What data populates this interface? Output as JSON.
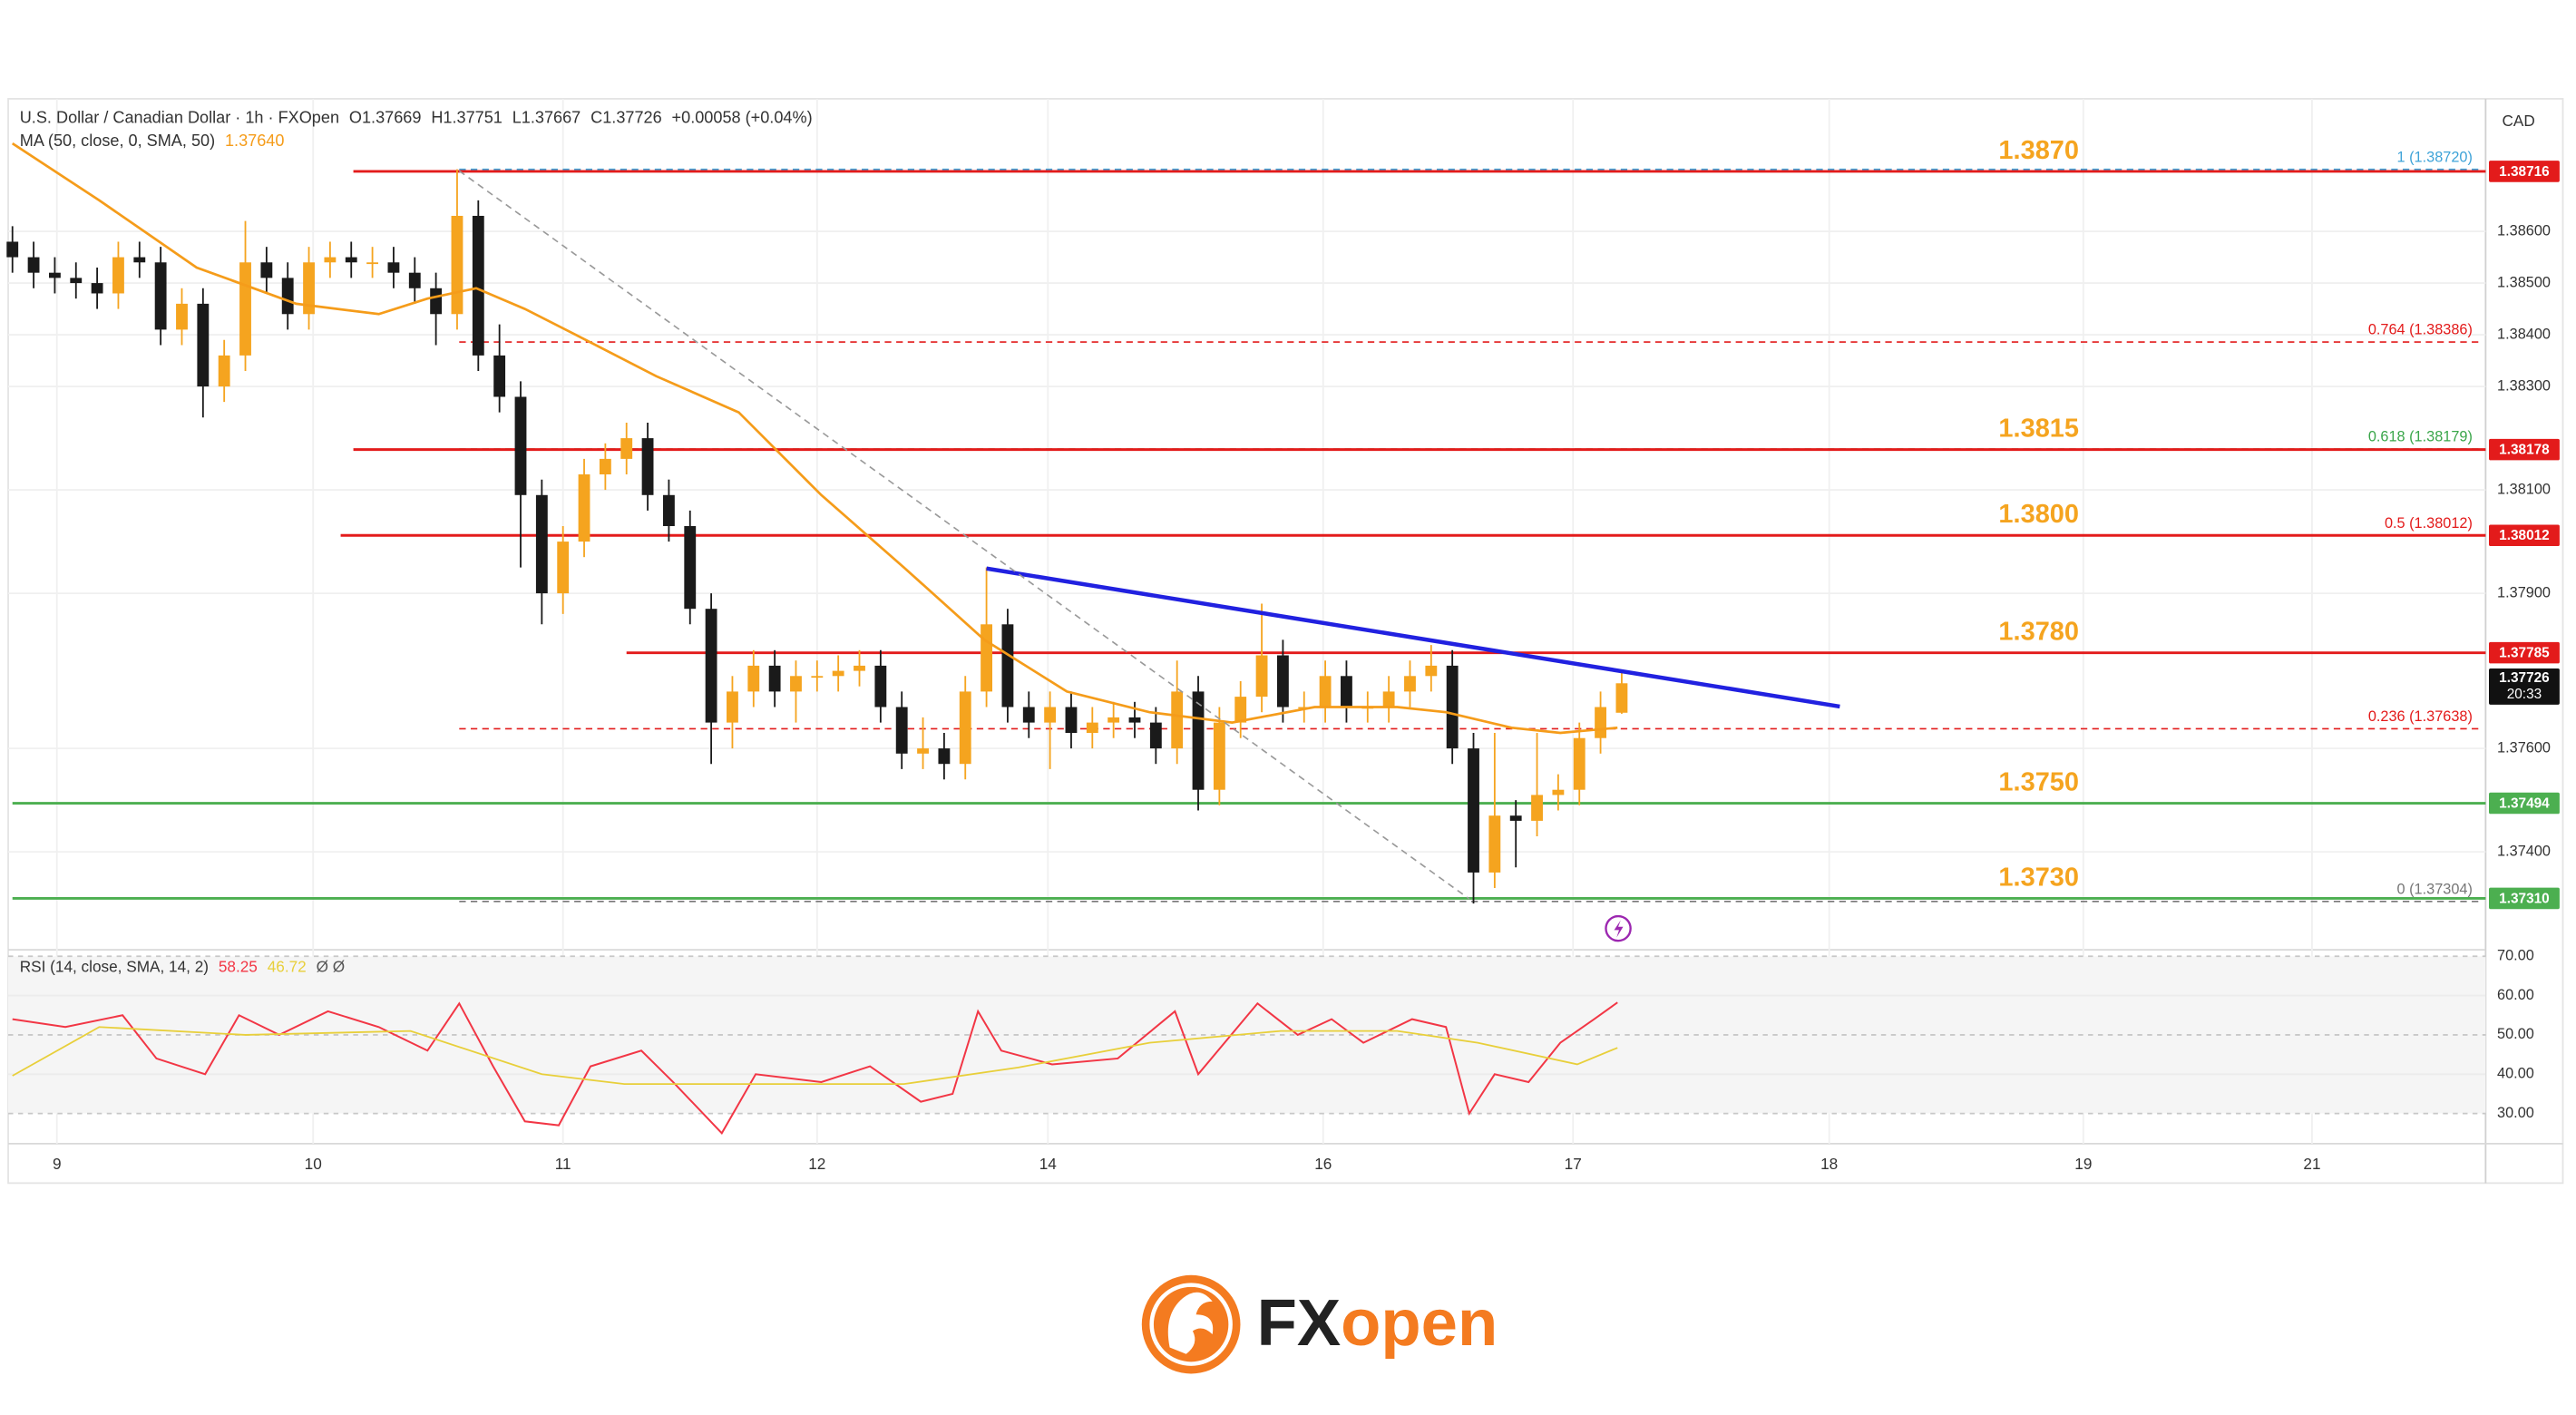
{
  "chart_data": [
    {
      "type": "candlestick",
      "title": "U.S. Dollar / Canadian Dollar · 1h · FXOpen",
      "ohlc_labels": [
        "O1.37669",
        "H1.37751",
        "L1.37667",
        "C1.37726"
      ],
      "change_label": "+0.00058 (+0.04%)",
      "currency": "CAD",
      "countdown": "20:33",
      "up_color": "#f5a41f",
      "down_color": "#1a1a1a",
      "open": [
        1.3858,
        1.3855,
        1.3852,
        1.3851,
        1.385,
        1.3848,
        1.3855,
        1.3854,
        1.3841,
        1.3846,
        1.383,
        1.3836,
        1.3854,
        1.3851,
        1.3844,
        1.3854,
        1.3855,
        1.3854,
        1.3854,
        1.3852,
        1.3849,
        1.3844,
        1.3863,
        1.3836,
        1.3828,
        1.3809,
        1.379,
        1.38,
        1.3813,
        1.3816,
        1.382,
        1.3809,
        1.3803,
        1.3787,
        1.3765,
        1.3771,
        1.3776,
        1.3771,
        1.3774,
        1.3774,
        1.3775,
        1.3776,
        1.3768,
        1.3759,
        1.376,
        1.3757,
        1.3771,
        1.3784,
        1.3768,
        1.3765,
        1.3768,
        1.3763,
        1.3765,
        1.3766,
        1.3765,
        1.376,
        1.3771,
        1.3752,
        1.3765,
        1.377,
        1.3778,
        1.3768,
        1.3768,
        1.3774,
        1.3768,
        1.3768,
        1.3771,
        1.3774,
        1.3776,
        1.376,
        1.3736,
        1.3747,
        1.3746,
        1.3751,
        1.3752,
        1.3762,
        1.37669
      ],
      "high": [
        1.3861,
        1.3858,
        1.3855,
        1.3854,
        1.3853,
        1.3858,
        1.3858,
        1.3857,
        1.3849,
        1.3849,
        1.3839,
        1.3862,
        1.3857,
        1.3854,
        1.3857,
        1.3858,
        1.3858,
        1.3857,
        1.3857,
        1.3855,
        1.3852,
        1.3872,
        1.3866,
        1.3842,
        1.3831,
        1.3812,
        1.3803,
        1.3816,
        1.3819,
        1.3823,
        1.3823,
        1.3812,
        1.3806,
        1.379,
        1.3774,
        1.3779,
        1.3779,
        1.3777,
        1.3777,
        1.3778,
        1.3779,
        1.3779,
        1.3771,
        1.3766,
        1.3763,
        1.3774,
        1.3795,
        1.3787,
        1.3771,
        1.3771,
        1.3771,
        1.3768,
        1.3769,
        1.3769,
        1.3768,
        1.3777,
        1.3774,
        1.3768,
        1.3773,
        1.3788,
        1.3781,
        1.3771,
        1.3777,
        1.3777,
        1.3771,
        1.3774,
        1.3777,
        1.378,
        1.3779,
        1.3763,
        1.3763,
        1.375,
        1.3763,
        1.3755,
        1.3765,
        1.3771,
        1.37751
      ],
      "low": [
        1.3852,
        1.3849,
        1.3848,
        1.3847,
        1.3845,
        1.3845,
        1.3851,
        1.3838,
        1.3838,
        1.3824,
        1.3827,
        1.3833,
        1.3848,
        1.3841,
        1.3841,
        1.3851,
        1.3851,
        1.3851,
        1.3849,
        1.3846,
        1.3838,
        1.3841,
        1.3833,
        1.3825,
        1.3795,
        1.3784,
        1.3786,
        1.3797,
        1.381,
        1.3813,
        1.3806,
        1.38,
        1.3784,
        1.3757,
        1.376,
        1.3768,
        1.3768,
        1.3765,
        1.3771,
        1.3771,
        1.3772,
        1.3765,
        1.3756,
        1.3756,
        1.3754,
        1.3754,
        1.3768,
        1.3765,
        1.3762,
        1.3756,
        1.376,
        1.376,
        1.3762,
        1.3762,
        1.3757,
        1.3757,
        1.3748,
        1.3749,
        1.3762,
        1.3767,
        1.3765,
        1.3765,
        1.3765,
        1.3765,
        1.3765,
        1.3765,
        1.3768,
        1.3771,
        1.3757,
        1.373,
        1.3733,
        1.3737,
        1.3743,
        1.3748,
        1.3749,
        1.3759,
        1.37667
      ],
      "close": [
        1.3855,
        1.3852,
        1.3851,
        1.385,
        1.3848,
        1.3855,
        1.3854,
        1.3841,
        1.3846,
        1.383,
        1.3836,
        1.3854,
        1.3851,
        1.3844,
        1.3854,
        1.3855,
        1.3854,
        1.3854,
        1.3852,
        1.3849,
        1.3844,
        1.3863,
        1.3836,
        1.3828,
        1.3809,
        1.379,
        1.38,
        1.3813,
        1.3816,
        1.382,
        1.3809,
        1.3803,
        1.3787,
        1.3765,
        1.3771,
        1.3776,
        1.3771,
        1.3774,
        1.3774,
        1.3775,
        1.3776,
        1.3768,
        1.3759,
        1.376,
        1.3757,
        1.3771,
        1.3784,
        1.3768,
        1.3765,
        1.3768,
        1.3763,
        1.3765,
        1.3766,
        1.3765,
        1.376,
        1.3771,
        1.3752,
        1.3765,
        1.377,
        1.3778,
        1.3768,
        1.3768,
        1.3774,
        1.3768,
        1.3768,
        1.3771,
        1.3774,
        1.3776,
        1.376,
        1.3736,
        1.3747,
        1.3746,
        1.3751,
        1.3752,
        1.3762,
        1.3768,
        1.37726
      ],
      "xlim": [
        -0.2,
        116.8
      ],
      "xticks": [
        {
          "value": 2.1,
          "label": "9"
        },
        {
          "value": 14.2,
          "label": "10"
        },
        {
          "value": 26.0,
          "label": "11"
        },
        {
          "value": 38.0,
          "label": "12"
        },
        {
          "value": 48.9,
          "label": "14"
        },
        {
          "value": 61.9,
          "label": "16"
        },
        {
          "value": 73.7,
          "label": "17"
        },
        {
          "value": 85.8,
          "label": "18"
        },
        {
          "value": 97.8,
          "label": "19"
        },
        {
          "value": 108.6,
          "label": "21"
        }
      ],
      "ylim": [
        1.3722,
        1.3885
      ],
      "yticks": [
        {
          "value": 1.374,
          "label": "1.37400"
        },
        {
          "value": 1.376,
          "label": "1.37600"
        },
        {
          "value": 1.379,
          "label": "1.37900"
        },
        {
          "value": 1.381,
          "label": "1.38100"
        },
        {
          "value": 1.383,
          "label": "1.38300"
        },
        {
          "value": 1.384,
          "label": "1.38400"
        },
        {
          "value": 1.385,
          "label": "1.38500"
        },
        {
          "value": 1.386,
          "label": "1.38600"
        }
      ],
      "grid": true,
      "ma": {
        "name": "MA (50, close, 0, SMA, 50)",
        "color": "#f59c1a",
        "current_label": "1.37640",
        "x": [
          0,
          4.1,
          8.7,
          13.4,
          17.3,
          19.6,
          21.9,
          24.2,
          26.6,
          30.4,
          34.3,
          38.2,
          42.1,
          45.9,
          49.8,
          53.7,
          57.6,
          61.5,
          65.4,
          67.7,
          70.8,
          73.1,
          75.8
        ],
        "values": [
          1.3877,
          1.3866,
          1.3853,
          1.3846,
          1.3844,
          1.3847,
          1.3849,
          1.3845,
          1.384,
          1.3832,
          1.3825,
          1.3809,
          1.3795,
          1.3781,
          1.3771,
          1.3767,
          1.3765,
          1.3768,
          1.3768,
          1.3767,
          1.3764,
          1.3763,
          1.3764
        ]
      },
      "levels": [
        {
          "label": "1.3870",
          "value": 1.38716,
          "color": "#e31b1b",
          "from": 16.1
        },
        {
          "label": "1.3815",
          "value": 1.38178,
          "color": "#e31b1b",
          "from": 16.1
        },
        {
          "label": "1.3800",
          "value": 1.38012,
          "color": "#e31b1b",
          "from": 15.5
        },
        {
          "label": "1.3780",
          "value": 1.37785,
          "color": "#e31b1b",
          "from": 29.0
        },
        {
          "label": "1.3750",
          "value": 1.37494,
          "color": "#4caf50",
          "from": 0
        },
        {
          "label": "1.3730",
          "value": 1.3731,
          "badge": "1.37310",
          "color": "#4caf50",
          "from": 0
        }
      ],
      "fibonacci": [
        {
          "label": "1 (1.38720)",
          "value": 1.3872,
          "color": "#3ea3d8"
        },
        {
          "label": "0.764 (1.38386)",
          "value": 1.38386,
          "color": "#e31b1b"
        },
        {
          "label": "0.618 (1.38179)",
          "value": 1.38179,
          "color": "#3aa64a"
        },
        {
          "label": "0.5 (1.38012)",
          "value": 1.38012,
          "color": "#e31b1b"
        },
        {
          "label": "0.236 (1.37638)",
          "value": 1.37638,
          "color": "#e31b1b"
        },
        {
          "label": "0 (1.37304)",
          "value": 1.37304,
          "color": "#777777"
        }
      ],
      "fib_from": 21.1,
      "trendlines": [
        {
          "color": "#2121e0",
          "dashed": false,
          "x": [
            46.0,
            86.3
          ],
          "values": [
            1.37948,
            1.37681
          ]
        },
        {
          "color": "#999999",
          "dashed": true,
          "x": [
            21.1,
            68.8
          ],
          "values": [
            1.38717,
            1.37309
          ]
        }
      ]
    },
    {
      "type": "line",
      "title": "RSI (14, close, SMA, 14, 2)",
      "extra": "Ø Ø",
      "xlim": [
        -0.2,
        116.8
      ],
      "ylim": [
        24,
        70.8
      ],
      "yticks": [
        {
          "value": 30,
          "label": "30.00"
        },
        {
          "value": 40,
          "label": "40.00"
        },
        {
          "value": 50,
          "label": "50.00"
        },
        {
          "value": 60,
          "label": "60.00"
        },
        {
          "value": 70,
          "label": "70.00"
        }
      ],
      "band": [
        30,
        70
      ],
      "series": [
        {
          "color": "#f23645",
          "x": [
            0,
            2.5,
            5.2,
            6.8,
            9.1,
            10.7,
            12.6,
            14.9,
            17.3,
            19.6,
            21.1,
            22.7,
            24.2,
            25.8,
            27.3,
            29.7,
            31.2,
            33.5,
            35.1,
            38.2,
            40.5,
            42.9,
            44.4,
            45.6,
            46.7,
            49.1,
            52.2,
            54.9,
            56.0,
            58.8,
            60.7,
            62.3,
            63.8,
            66.1,
            67.7,
            68.8,
            70.0,
            71.6,
            73.1,
            74.7,
            75.8
          ],
          "values": [
            54,
            52,
            55,
            44,
            40,
            55,
            50,
            56,
            52,
            46,
            58,
            42,
            28,
            27,
            42,
            46,
            38,
            25,
            40,
            38,
            42,
            33,
            35,
            56,
            46,
            42.5,
            44,
            56,
            40,
            58,
            50,
            54,
            48,
            54,
            52,
            30,
            40,
            38,
            48,
            54,
            58.25
          ]
        },
        {
          "color": "#e8cf3a",
          "x": [
            0,
            4.1,
            11.0,
            18.8,
            25.0,
            28.9,
            34.3,
            42.1,
            47.5,
            53.7,
            59.9,
            65.4,
            69.2,
            73.9,
            75.8
          ],
          "values": [
            39.6,
            52,
            50,
            51,
            40,
            37.5,
            37.5,
            37.5,
            41.7,
            48,
            51,
            51,
            48,
            42.5,
            46.72
          ]
        }
      ]
    }
  ],
  "brand": {
    "parts": [
      "FX",
      "open"
    ]
  }
}
